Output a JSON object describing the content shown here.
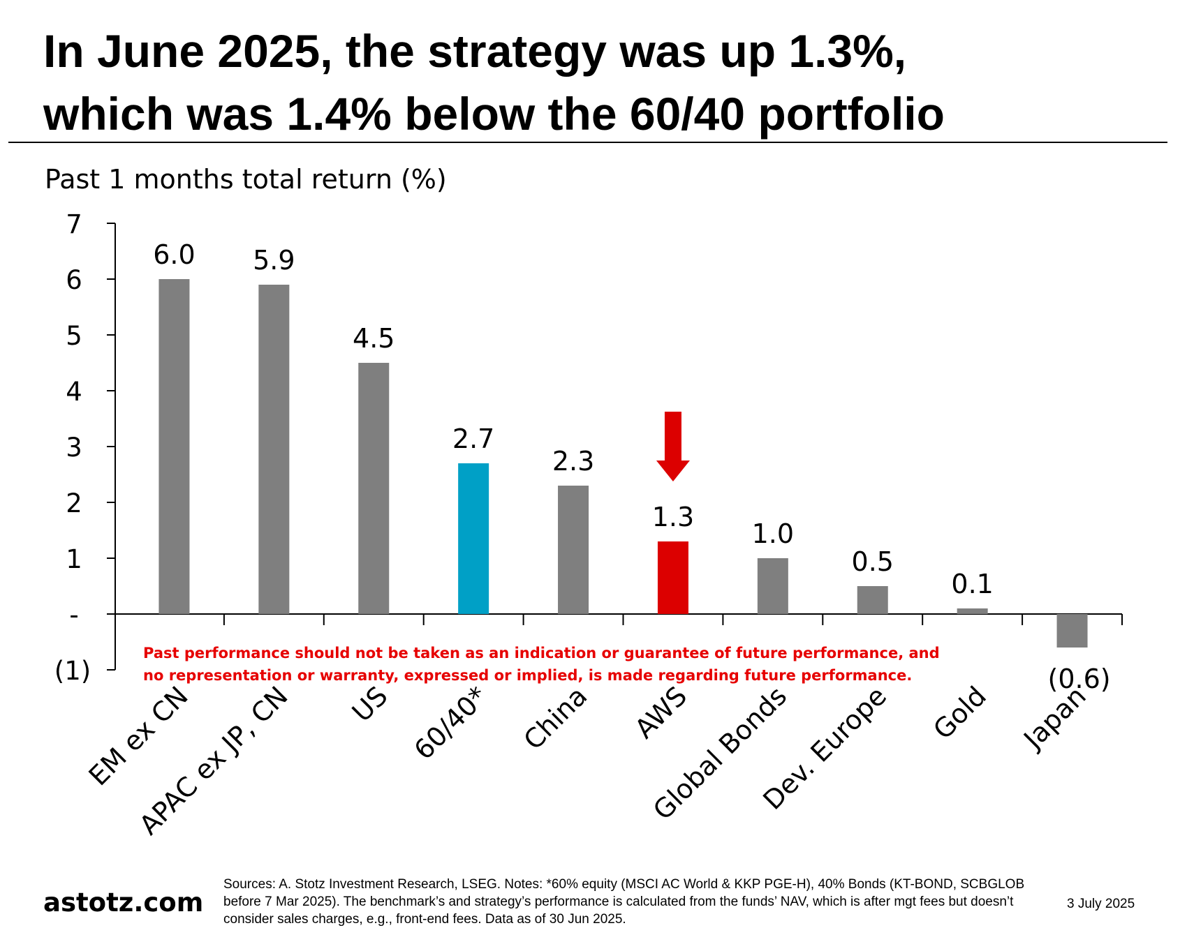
{
  "header": {
    "title_line1": "In June 2025, the strategy was up 1.3%,",
    "title_line2": "which was 1.4% below the 60/40 portfolio"
  },
  "chart_data": {
    "type": "bar",
    "title": "Past 1 months total return (%)",
    "categories": [
      "EM ex CN",
      "APAC ex JP, CN",
      "US",
      "60/40*",
      "China",
      "AWS",
      "Global Bonds",
      "Dev. Europe",
      "Gold",
      "Japan"
    ],
    "values": [
      6.0,
      5.9,
      4.5,
      2.7,
      2.3,
      1.3,
      1.0,
      0.5,
      0.1,
      -0.6
    ],
    "data_labels": [
      "6.0",
      "5.9",
      "4.5",
      "2.7",
      "2.3",
      "1.3",
      "1.0",
      "0.5",
      "0.1",
      "(0.6)"
    ],
    "bar_colors": [
      "#7f7f7f",
      "#7f7f7f",
      "#7f7f7f",
      "#00a0c6",
      "#7f7f7f",
      "#dc0000",
      "#7f7f7f",
      "#7f7f7f",
      "#7f7f7f",
      "#7f7f7f"
    ],
    "y_ticks": [
      7,
      6,
      5,
      4,
      3,
      2,
      1,
      0,
      -1
    ],
    "y_tick_labels": [
      "7",
      "6",
      "5",
      "4",
      "3",
      "2",
      "1",
      "-",
      "(1)"
    ],
    "ylim": [
      -1,
      7
    ],
    "xlabel": "",
    "ylabel": "",
    "grid": false,
    "annotation": {
      "type": "down-arrow",
      "target": "AWS",
      "color": "#dc0000"
    }
  },
  "disclaimer": "Past performance should not be taken as an indication or guarantee of future performance, and no representation or warranty, expressed or implied, is made regarding future performance.",
  "footer": {
    "brand": "astotz.com",
    "sources": "Sources: A. Stotz Investment Research, LSEG. Notes: *60% equity (MSCI AC World & KKP PGE-H), 40% Bonds (KT-BOND, SCBGLOB before 7 Mar 2025). The benchmark’s and strategy’s performance is calculated from the funds’ NAV, which is after mgt fees but doesn’t consider sales charges, e.g., front-end fees. Data as of 30 Jun 2025.",
    "date": "3 July 2025"
  }
}
